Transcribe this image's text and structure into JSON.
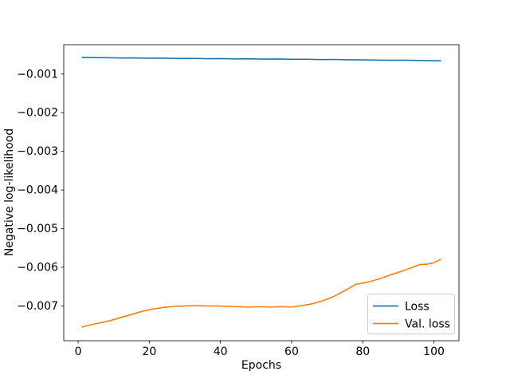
{
  "chart_data": {
    "type": "line",
    "title": "",
    "xlabel": "Epochs",
    "ylabel": "Negative log-likelihood",
    "xlim": [
      -4.05,
      107.05
    ],
    "ylim": [
      -0.0079,
      -0.00024
    ],
    "grid": false,
    "axis_color": "#000000",
    "background_color": "#ffffff",
    "xticks": {
      "values": [
        0,
        20,
        40,
        60,
        80,
        100
      ],
      "labels": [
        "0",
        "20",
        "40",
        "60",
        "80",
        "100"
      ]
    },
    "yticks": {
      "values": [
        -0.001,
        -0.002,
        -0.003,
        -0.004,
        -0.005,
        -0.006,
        -0.007
      ],
      "labels": [
        "−0.001",
        "−0.002",
        "−0.003",
        "−0.004",
        "−0.005",
        "−0.006",
        "−0.007"
      ]
    },
    "legend": {
      "position": "lower right",
      "border_color": "#cccccc",
      "entries": [
        "Loss",
        "Val. loss"
      ]
    },
    "series": [
      {
        "name": "Loss",
        "color": "#1f77b4",
        "x": [
          1,
          4,
          8,
          12,
          16,
          20,
          24,
          28,
          32,
          36,
          40,
          44,
          48,
          52,
          56,
          60,
          64,
          68,
          72,
          76,
          80,
          84,
          88,
          92,
          96,
          100,
          102
        ],
        "y": [
          -0.000568,
          -0.000574,
          -0.000577,
          -0.000585,
          -0.000582,
          -0.00059,
          -0.000588,
          -0.000596,
          -0.000594,
          -0.000602,
          -0.000599,
          -0.000607,
          -0.000605,
          -0.000614,
          -0.000611,
          -0.000619,
          -0.000617,
          -0.000625,
          -0.000622,
          -0.000631,
          -0.000634,
          -0.000638,
          -0.000644,
          -0.000642,
          -0.00065,
          -0.000654,
          -0.000657
        ]
      },
      {
        "name": "Val. loss",
        "color": "#ff7f0e",
        "x": [
          1,
          3,
          6,
          9,
          12,
          15,
          18,
          21,
          24,
          27,
          30,
          33,
          36,
          39,
          42,
          45,
          48,
          51,
          54,
          57,
          60,
          63,
          66,
          69,
          72,
          75,
          78,
          80,
          82,
          85,
          88,
          91,
          94,
          96,
          98,
          100,
          102
        ],
        "y": [
          -0.00755,
          -0.0075,
          -0.00744,
          -0.00738,
          -0.0073,
          -0.00722,
          -0.00714,
          -0.00708,
          -0.00704,
          -0.00701,
          -0.007,
          -0.00699,
          -0.007,
          -0.007,
          -0.00701,
          -0.00702,
          -0.00703,
          -0.00702,
          -0.00703,
          -0.00702,
          -0.00703,
          -0.00699,
          -0.00694,
          -0.00686,
          -0.00675,
          -0.0066,
          -0.00644,
          -0.00641,
          -0.00637,
          -0.00629,
          -0.00619,
          -0.0061,
          -0.006,
          -0.00593,
          -0.00592,
          -0.00588,
          -0.00579
        ]
      }
    ]
  }
}
